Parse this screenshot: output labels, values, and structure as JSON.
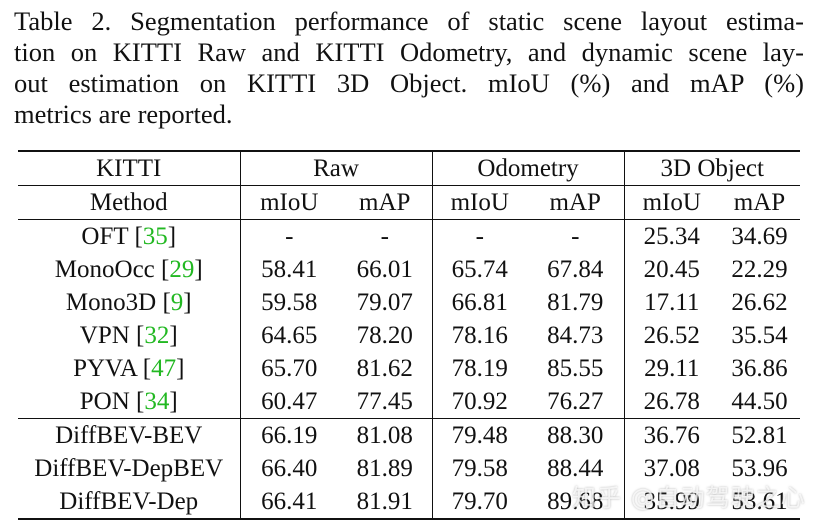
{
  "caption": {
    "line1": "Table 2. Segmentation performance of static scene layout estima-",
    "line2": "tion on KITTI Raw and KITTI Odometry, and dynamic scene lay-",
    "line3": "out estimation on KITTI 3D Object.  mIoU (%) and mAP (%)",
    "line4": "metrics are reported."
  },
  "table": {
    "dataset_header": "KITTI",
    "groups": [
      "Raw",
      "Odometry",
      "3D Object"
    ],
    "method_header": "Method",
    "metrics": [
      "mIoU",
      "mAP",
      "mIoU",
      "mAP",
      "mIoU",
      "mAP"
    ],
    "rows": [
      {
        "name": "OFT",
        "cite": "35",
        "cells": [
          "-",
          "-",
          "-",
          "-",
          "25.34",
          "34.69"
        ]
      },
      {
        "name": "MonoOcc",
        "cite": "29",
        "cells": [
          "58.41",
          "66.01",
          "65.74",
          "67.84",
          "20.45",
          "22.29"
        ]
      },
      {
        "name": "Mono3D",
        "cite": "9",
        "cells": [
          "59.58",
          "79.07",
          "66.81",
          "81.79",
          "17.11",
          "26.62"
        ]
      },
      {
        "name": "VPN",
        "cite": "32",
        "cells": [
          "64.65",
          "78.20",
          "78.16",
          "84.73",
          "26.52",
          "35.54"
        ]
      },
      {
        "name": "PYVA",
        "cite": "47",
        "cells": [
          "65.70",
          "81.62",
          "78.19",
          "85.55",
          "29.11",
          "36.86"
        ]
      },
      {
        "name": "PON",
        "cite": "34",
        "cells": [
          "60.47",
          "77.45",
          "70.92",
          "76.27",
          "26.78",
          "44.50"
        ]
      },
      {
        "name": "DiffBEV-BEV",
        "cite": "",
        "cells": [
          "66.19",
          "81.08",
          "79.48",
          "88.30",
          "36.76",
          "52.81"
        ]
      },
      {
        "name": "DiffBEV-DepBEV",
        "cite": "",
        "cells": [
          "66.40",
          "81.89",
          "79.58",
          "88.44",
          "37.08",
          "53.96"
        ]
      },
      {
        "name": "DiffBEV-Dep",
        "cite": "",
        "cells": [
          "66.41",
          "81.91",
          "79.70",
          "89.68",
          "35.99",
          "53.61"
        ]
      }
    ]
  },
  "watermark": "知乎 @自动驾驶之心"
}
